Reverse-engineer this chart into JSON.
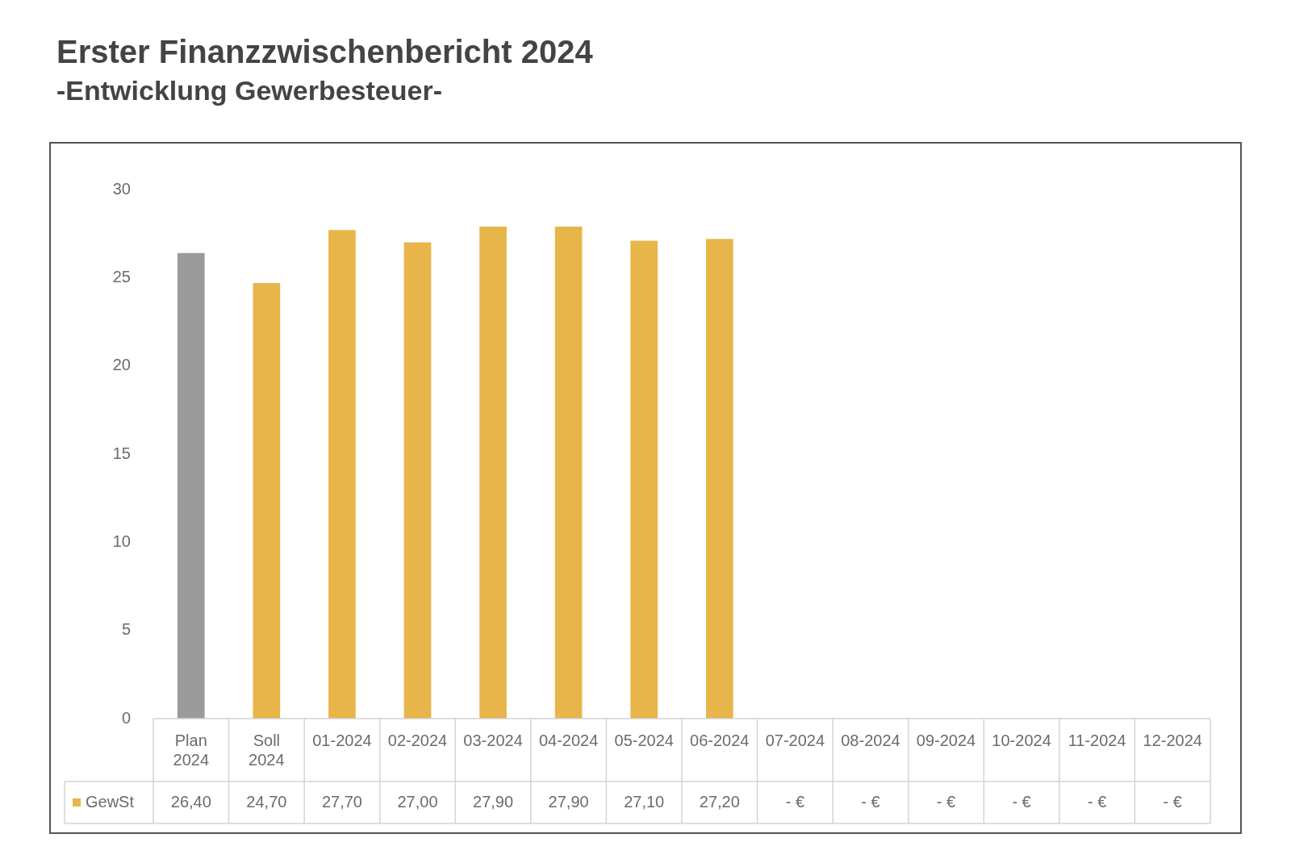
{
  "chart_data": {
    "type": "bar",
    "title": "Erster Finanzzwischenbericht 2024",
    "subtitle": "-Entwicklung Gewerbesteuer-",
    "categories": [
      "Plan 2024",
      "Soll 2024",
      "01-2024",
      "02-2024",
      "03-2024",
      "04-2024",
      "05-2024",
      "06-2024",
      "07-2024",
      "08-2024",
      "09-2024",
      "10-2024",
      "11-2024",
      "12-2024"
    ],
    "series": [
      {
        "name": "GewSt",
        "color": "#e8b54a",
        "colors": [
          "#9a9b9b",
          "#e8b54a",
          "#e8b54a",
          "#e8b54a",
          "#e8b54a",
          "#e8b54a",
          "#e8b54a",
          "#e8b54a",
          "#e8b54a",
          "#e8b54a",
          "#e8b54a",
          "#e8b54a",
          "#e8b54a",
          "#e8b54a"
        ],
        "values": [
          26.4,
          24.7,
          27.7,
          27.0,
          27.9,
          27.9,
          27.1,
          27.2,
          null,
          null,
          null,
          null,
          null,
          null
        ],
        "value_labels": [
          "26,40",
          "24,70",
          "27,70",
          "27,00",
          "27,90",
          "27,90",
          "27,10",
          "27,20",
          "- €",
          "- €",
          "- €",
          "- €",
          "- €",
          "- €"
        ]
      }
    ],
    "ylim": [
      0,
      30
    ],
    "yticks": [
      0,
      5,
      10,
      15,
      20,
      25,
      30
    ]
  }
}
